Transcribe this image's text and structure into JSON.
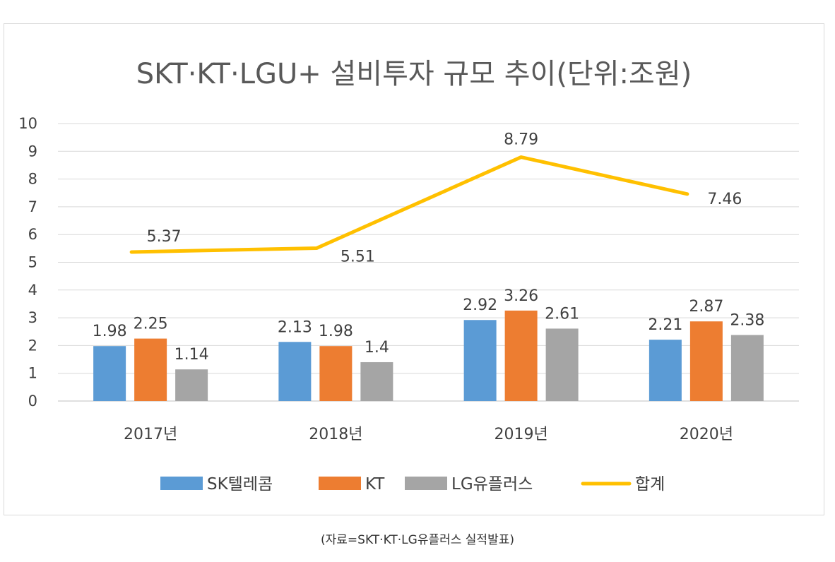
{
  "chart_data": {
    "type": "bar",
    "title": "SKT·KT·LGU+ 설비투자 규모 추이(단위:조원)",
    "categories": [
      "2017년",
      "2018년",
      "2019년",
      "2020년"
    ],
    "series": [
      {
        "name": "SK텔레콤",
        "kind": "bar",
        "color": "#5b9bd5",
        "values": [
          1.98,
          2.13,
          2.92,
          2.21
        ],
        "labels": [
          "1.98",
          "2.13",
          "2.92",
          "2.21"
        ]
      },
      {
        "name": "KT",
        "kind": "bar",
        "color": "#ed7d31",
        "values": [
          2.25,
          1.98,
          3.26,
          2.87
        ],
        "labels": [
          "2.25",
          "1.98",
          "3.26",
          "2.87"
        ]
      },
      {
        "name": "LG유플러스",
        "kind": "bar",
        "color": "#a5a5a5",
        "values": [
          1.14,
          1.4,
          2.61,
          2.38
        ],
        "labels": [
          "1.14",
          "1.4",
          "2.61",
          "2.38"
        ]
      },
      {
        "name": "합계",
        "kind": "line",
        "color": "#ffc000",
        "values": [
          5.37,
          5.51,
          8.79,
          7.46
        ],
        "labels": [
          "5.37",
          "5.51",
          "8.79",
          "7.46"
        ]
      }
    ],
    "ylim": [
      0,
      10
    ],
    "yticks": [
      0,
      1,
      2,
      3,
      4,
      5,
      6,
      7,
      8,
      9,
      10
    ],
    "xlabel": "",
    "ylabel": "",
    "grid": true,
    "legend": "bottom"
  },
  "caption": "(자료=SKT·KT·LG유플러스 실적발표)"
}
